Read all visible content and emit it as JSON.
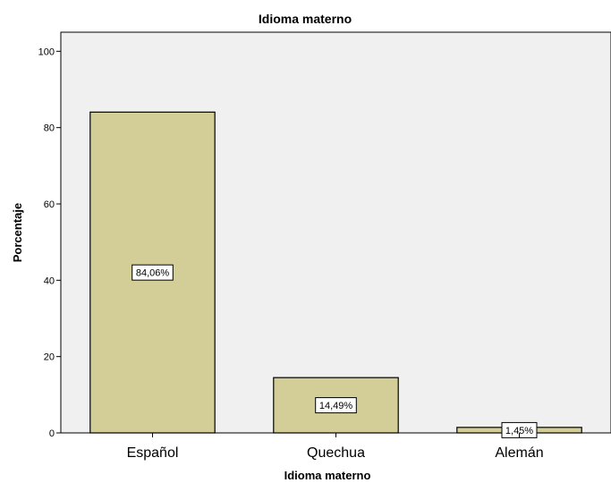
{
  "chart_data": {
    "type": "bar",
    "title": "Idioma materno",
    "xlabel": "Idioma materno",
    "ylabel": "Porcentaje",
    "categories": [
      "Español",
      "Quechua",
      "Alemán"
    ],
    "values": [
      84.06,
      14.49,
      1.45
    ],
    "data_labels": [
      "84,06%",
      "14,49%",
      "1,45%"
    ],
    "ylim": [
      0,
      105
    ],
    "yticks": [
      0,
      20,
      40,
      60,
      80,
      100
    ],
    "grid": false,
    "colors": {
      "plot_background": "#f0f0f0",
      "bar_fill": "#d3ce97",
      "bar_stroke": "#000000"
    }
  }
}
